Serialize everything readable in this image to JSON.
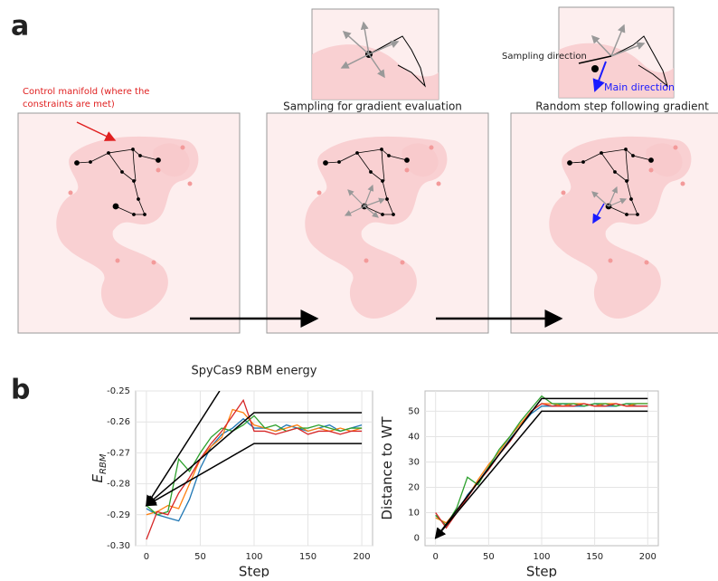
{
  "panel_labels": [
    "a",
    "b"
  ],
  "panel_a": {
    "manifold_note": [
      "Control manifold (where the",
      "constraints are met)"
    ],
    "step_titles": [
      "Sampling for gradient evaluation",
      "Random step following gradient"
    ],
    "sampling_direction": "Sampling direction",
    "main_direction": "Main direction"
  },
  "chart_data": [
    {
      "type": "line",
      "title": "SpyCas9 RBM energy",
      "xlabel": "Step",
      "ylabel": "E",
      "ylabel_sub": "RBM",
      "x": [
        0,
        10,
        20,
        30,
        40,
        50,
        60,
        70,
        80,
        90,
        100,
        110,
        120,
        130,
        140,
        150,
        160,
        170,
        180,
        190,
        200
      ],
      "xlim": [
        -10,
        210
      ],
      "xticks": [
        0,
        50,
        100,
        150,
        200
      ],
      "ylim": [
        -0.3,
        -0.25
      ],
      "yticks": [
        {
          "value": -0.3,
          "label": "-0.30"
        },
        -0.29,
        -0.28,
        -0.27,
        -0.26,
        -0.25
      ],
      "grid": true,
      "series": [
        {
          "color": "#1f77b4",
          "values": [
            -0.288,
            -0.29,
            -0.291,
            -0.292,
            -0.285,
            -0.275,
            -0.268,
            -0.264,
            -0.262,
            -0.259,
            -0.262,
            -0.262,
            -0.263,
            -0.261,
            -0.262,
            -0.263,
            -0.262,
            -0.261,
            -0.263,
            -0.262,
            -0.261
          ]
        },
        {
          "color": "#ff7f0e",
          "values": [
            -0.29,
            -0.289,
            -0.287,
            -0.288,
            -0.28,
            -0.272,
            -0.268,
            -0.265,
            -0.256,
            -0.257,
            -0.261,
            -0.262,
            -0.263,
            -0.262,
            -0.261,
            -0.263,
            -0.262,
            -0.263,
            -0.262,
            -0.263,
            -0.262
          ]
        },
        {
          "color": "#2ca02c",
          "values": [
            -0.287,
            -0.29,
            -0.289,
            -0.272,
            -0.276,
            -0.27,
            -0.265,
            -0.262,
            -0.263,
            -0.261,
            -0.258,
            -0.262,
            -0.261,
            -0.263,
            -0.262,
            -0.262,
            -0.261,
            -0.262,
            -0.263,
            -0.262,
            -0.262
          ]
        },
        {
          "color": "#d62728",
          "values": [
            -0.298,
            -0.289,
            -0.29,
            -0.283,
            -0.278,
            -0.272,
            -0.267,
            -0.263,
            -0.258,
            -0.253,
            -0.263,
            -0.263,
            -0.264,
            -0.263,
            -0.262,
            -0.264,
            -0.263,
            -0.263,
            -0.264,
            -0.263,
            -0.263
          ]
        },
        {
          "color": "#000000",
          "x": [
            0,
            100,
            200
          ],
          "values": [
            -0.287,
            -0.257,
            -0.257
          ]
        },
        {
          "color": "#000000",
          "x": [
            0,
            100,
            200
          ],
          "values": [
            -0.287,
            -0.267,
            -0.267
          ]
        },
        {
          "color": "#000000",
          "x": [
            0,
            68
          ],
          "values": [
            -0.287,
            -0.25
          ]
        }
      ]
    },
    {
      "type": "line",
      "xlabel": "Step",
      "ylabel": "Distance to WT",
      "x": [
        0,
        10,
        20,
        30,
        40,
        50,
        60,
        70,
        80,
        90,
        100,
        110,
        120,
        130,
        140,
        150,
        160,
        170,
        180,
        190,
        200
      ],
      "xlim": [
        -10,
        210
      ],
      "xticks": [
        0,
        50,
        100,
        150,
        200
      ],
      "ylim": [
        -3,
        58
      ],
      "yticks": [
        0,
        10,
        20,
        30,
        40,
        50
      ],
      "grid": true,
      "series": [
        {
          "color": "#1f77b4",
          "values": [
            9,
            5,
            10,
            17,
            22,
            28,
            33,
            39,
            44,
            49,
            52,
            52,
            53,
            52,
            52,
            53,
            52,
            52,
            53,
            52,
            52
          ]
        },
        {
          "color": "#ff7f0e",
          "values": [
            8,
            6,
            11,
            16,
            23,
            29,
            34,
            40,
            45,
            50,
            53,
            53,
            52,
            53,
            53,
            52,
            53,
            53,
            52,
            53,
            53
          ]
        },
        {
          "color": "#2ca02c",
          "values": [
            9,
            5,
            12,
            24,
            21,
            28,
            35,
            40,
            46,
            51,
            56,
            53,
            53,
            53,
            52,
            53,
            53,
            52,
            53,
            53,
            53
          ]
        },
        {
          "color": "#d62728",
          "values": [
            10,
            4,
            10,
            16,
            22,
            27,
            33,
            38,
            44,
            50,
            53,
            52,
            52,
            52,
            53,
            52,
            52,
            53,
            52,
            52,
            52
          ]
        },
        {
          "color": "#000000",
          "x": [
            0,
            100,
            200
          ],
          "values": [
            0,
            55,
            55
          ]
        },
        {
          "color": "#000000",
          "x": [
            0,
            100,
            200
          ],
          "values": [
            0,
            50,
            50
          ]
        }
      ]
    }
  ]
}
